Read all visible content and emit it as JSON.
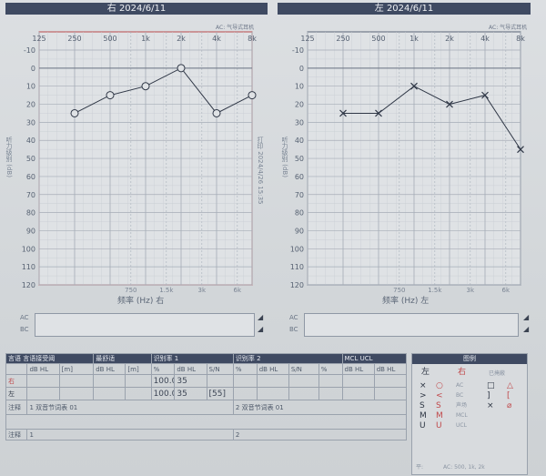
{
  "right_chart": {
    "header": "右 2024/6/11",
    "note": "AC: 气导式耳机",
    "freq_labels": [
      "125",
      "250",
      "500",
      "1k",
      "2k",
      "4k",
      "8k"
    ],
    "sub_freq_labels": [
      "750",
      "1.5k",
      "3k",
      "6k"
    ],
    "db_labels": [
      "-10",
      "0",
      "10",
      "20",
      "30",
      "40",
      "50",
      "60",
      "70",
      "80",
      "90",
      "100",
      "110",
      "120"
    ],
    "side_label": "听力级别 (dB)",
    "right_note": "打印 2024/4/26 15:35",
    "x_caption": "频率 (Hz) 右",
    "color": "#c0484a"
  },
  "left_chart": {
    "header": "左 2024/6/11",
    "note": "AC: 气导式耳机",
    "freq_labels": [
      "125",
      "250",
      "500",
      "1k",
      "2k",
      "4k",
      "8k"
    ],
    "sub_freq_labels": [
      "750",
      "1.5k",
      "3k",
      "6k"
    ],
    "db_labels": [
      "-10",
      "0",
      "10",
      "20",
      "30",
      "40",
      "50",
      "60",
      "70",
      "80",
      "90",
      "100",
      "110",
      "120"
    ],
    "side_label": "听力级别 (dB)",
    "x_caption": "频率 (Hz) 左",
    "color": "#3d4a66"
  },
  "chart_data": [
    {
      "type": "line",
      "title": "右 2024/6/11",
      "xlabel": "频率 (Hz) 右",
      "ylabel": "听力级别 (dB)",
      "x": [
        250,
        500,
        1000,
        2000,
        4000,
        8000
      ],
      "series": [
        {
          "values": [
            25,
            15,
            10,
            0,
            25,
            15
          ],
          "marker": "circle"
        }
      ],
      "x_scale": "log",
      "ylim": [
        120,
        -10
      ],
      "grid": true
    },
    {
      "type": "line",
      "title": "左 2024/6/11",
      "xlabel": "频率 (Hz) 左",
      "ylabel": "听力级别 (dB)",
      "x": [
        250,
        500,
        1000,
        2000,
        4000,
        8000
      ],
      "series": [
        {
          "values": [
            25,
            25,
            10,
            20,
            15,
            45
          ],
          "marker": "cross"
        }
      ],
      "x_scale": "log",
      "ylim": [
        120,
        -10
      ],
      "grid": true
    }
  ],
  "bc_rows": {
    "right": [
      "AC",
      "BC"
    ],
    "left": [
      "AC",
      "BC"
    ]
  },
  "speech": {
    "header": [
      "言语 言语接受阈",
      "最舒适",
      "识别率 1",
      "",
      "识别率 2",
      "",
      "MCL UCL"
    ],
    "subheader": [
      "",
      "dB HL",
      "[m]",
      "dB HL",
      "[m]",
      "%",
      "dB HL",
      "S/N",
      "%",
      "dB HL",
      "S/N",
      "%",
      "dB HL",
      "dB HL"
    ],
    "row_right_label": "右",
    "row_left_label": "左",
    "right_values": [
      "100.0",
      "35"
    ],
    "left_values": [
      "100.0",
      "35",
      "[55]"
    ],
    "comment_label": "注释",
    "comment_1": "1 双音节词表 01",
    "comment_2": "2 双音节词表 01",
    "notes_label": "注释",
    "note_1": "1",
    "note_2": "2"
  },
  "legend": {
    "title": "图例",
    "col_left": "左",
    "col_right": "右",
    "col_unmasked": "已掩蔽",
    "rows": [
      [
        "×",
        "○",
        "AC",
        "□",
        "△"
      ],
      [
        ">",
        "<",
        "BC",
        "]",
        "["
      ],
      [
        "S",
        "S",
        "声场",
        "×",
        "⌀"
      ],
      [
        "M",
        "M",
        "MCL",
        "",
        ""
      ],
      [
        "U",
        "U",
        "UCL",
        "",
        ""
      ]
    ],
    "footer_label": "平:",
    "footer_value": "AC: 500, 1k, 2k"
  }
}
